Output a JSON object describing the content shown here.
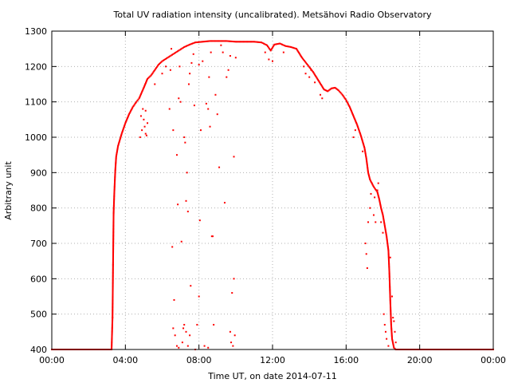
{
  "chart_data": {
    "type": "scatter",
    "title": "Total UV radiation intensity (uncalibrated). Metsähovi Radio Observatory",
    "xlabel": "Time UT, on date 2014-07-11",
    "ylabel": "Arbitrary unit",
    "x_unit": "hours UT",
    "xlim": [
      0,
      24
    ],
    "ylim": [
      400,
      1300
    ],
    "x_ticks": [
      "00:00",
      "04:00",
      "08:00",
      "12:00",
      "16:00",
      "20:00",
      "00:00"
    ],
    "y_ticks": [
      "400",
      "500",
      "600",
      "700",
      "800",
      "900",
      "1000",
      "1100",
      "1200",
      "1300"
    ],
    "grid": true,
    "marker_color": "#ff0000",
    "main_curve": [
      [
        0.0,
        400
      ],
      [
        3.0,
        400
      ],
      [
        3.25,
        400
      ],
      [
        3.3,
        490
      ],
      [
        3.33,
        640
      ],
      [
        3.36,
        785
      ],
      [
        3.4,
        845
      ],
      [
        3.45,
        905
      ],
      [
        3.5,
        945
      ],
      [
        3.6,
        975
      ],
      [
        3.8,
        1010
      ],
      [
        4.0,
        1040
      ],
      [
        4.2,
        1065
      ],
      [
        4.4,
        1085
      ],
      [
        4.6,
        1100
      ],
      [
        4.75,
        1110
      ],
      [
        5.0,
        1140
      ],
      [
        5.2,
        1165
      ],
      [
        5.4,
        1175
      ],
      [
        5.6,
        1190
      ],
      [
        5.8,
        1205
      ],
      [
        6.0,
        1215
      ],
      [
        6.3,
        1225
      ],
      [
        6.6,
        1235
      ],
      [
        6.9,
        1245
      ],
      [
        7.2,
        1255
      ],
      [
        7.5,
        1262
      ],
      [
        7.8,
        1268
      ],
      [
        8.2,
        1270
      ],
      [
        8.6,
        1272
      ],
      [
        9.0,
        1272
      ],
      [
        9.5,
        1272
      ],
      [
        10.0,
        1270
      ],
      [
        10.5,
        1270
      ],
      [
        11.0,
        1270
      ],
      [
        11.4,
        1268
      ],
      [
        11.7,
        1260
      ],
      [
        11.9,
        1245
      ],
      [
        12.1,
        1262
      ],
      [
        12.4,
        1265
      ],
      [
        12.7,
        1258
      ],
      [
        13.0,
        1255
      ],
      [
        13.3,
        1250
      ],
      [
        13.6,
        1225
      ],
      [
        13.9,
        1205
      ],
      [
        14.2,
        1185
      ],
      [
        14.5,
        1160
      ],
      [
        14.8,
        1135
      ],
      [
        15.0,
        1130
      ],
      [
        15.2,
        1138
      ],
      [
        15.4,
        1140
      ],
      [
        15.6,
        1132
      ],
      [
        15.8,
        1120
      ],
      [
        16.0,
        1105
      ],
      [
        16.2,
        1085
      ],
      [
        16.4,
        1060
      ],
      [
        16.6,
        1035
      ],
      [
        16.8,
        1005
      ],
      [
        17.0,
        970
      ],
      [
        17.1,
        940
      ],
      [
        17.2,
        900
      ],
      [
        17.3,
        880
      ],
      [
        17.5,
        860
      ],
      [
        17.7,
        845
      ],
      [
        17.8,
        825
      ],
      [
        17.9,
        800
      ],
      [
        18.0,
        780
      ],
      [
        18.1,
        750
      ],
      [
        18.2,
        720
      ],
      [
        18.3,
        680
      ],
      [
        18.35,
        620
      ],
      [
        18.4,
        540
      ],
      [
        18.45,
        470
      ],
      [
        18.5,
        430
      ],
      [
        18.6,
        405
      ],
      [
        18.7,
        400
      ],
      [
        20.0,
        400
      ],
      [
        24.0,
        400
      ]
    ],
    "scatter_points": [
      [
        3.3,
        490
      ],
      [
        3.33,
        640
      ],
      [
        3.36,
        785
      ],
      [
        4.8,
        1000
      ],
      [
        4.9,
        1020
      ],
      [
        5.0,
        1050
      ],
      [
        5.05,
        1030
      ],
      [
        5.1,
        1075
      ],
      [
        5.15,
        1005
      ],
      [
        5.2,
        1040
      ],
      [
        4.85,
        1060
      ],
      [
        4.95,
        1080
      ],
      [
        5.1,
        1010
      ],
      [
        5.6,
        1150
      ],
      [
        6.0,
        1180
      ],
      [
        6.2,
        1200
      ],
      [
        6.4,
        1080
      ],
      [
        6.45,
        1190
      ],
      [
        6.5,
        1250
      ],
      [
        6.6,
        1020
      ],
      [
        6.55,
        690
      ],
      [
        6.65,
        540
      ],
      [
        6.6,
        460
      ],
      [
        6.7,
        440
      ],
      [
        6.8,
        950
      ],
      [
        6.85,
        810
      ],
      [
        6.9,
        1110
      ],
      [
        6.95,
        1200
      ],
      [
        6.8,
        410
      ],
      [
        6.9,
        405
      ],
      [
        7.0,
        1100
      ],
      [
        7.05,
        705
      ],
      [
        7.1,
        420
      ],
      [
        7.15,
        460
      ],
      [
        7.2,
        1000
      ],
      [
        7.25,
        985
      ],
      [
        7.3,
        820
      ],
      [
        7.35,
        900
      ],
      [
        7.4,
        790
      ],
      [
        7.45,
        1150
      ],
      [
        7.5,
        1180
      ],
      [
        7.55,
        580
      ],
      [
        7.2,
        470
      ],
      [
        7.3,
        450
      ],
      [
        7.4,
        410
      ],
      [
        7.5,
        440
      ],
      [
        7.6,
        1210
      ],
      [
        7.7,
        1235
      ],
      [
        7.75,
        1090
      ],
      [
        7.8,
        400
      ],
      [
        7.9,
        470
      ],
      [
        8.0,
        550
      ],
      [
        8.05,
        765
      ],
      [
        8.1,
        1020
      ],
      [
        8.0,
        1205
      ],
      [
        8.2,
        1215
      ],
      [
        8.4,
        1095
      ],
      [
        8.5,
        1080
      ],
      [
        8.55,
        1170
      ],
      [
        8.6,
        1030
      ],
      [
        8.65,
        1240
      ],
      [
        8.7,
        720
      ],
      [
        8.75,
        720
      ],
      [
        8.8,
        470
      ],
      [
        8.3,
        410
      ],
      [
        8.5,
        405
      ],
      [
        8.9,
        1120
      ],
      [
        9.0,
        1065
      ],
      [
        9.1,
        915
      ],
      [
        9.2,
        1260
      ],
      [
        9.3,
        1240
      ],
      [
        9.4,
        815
      ],
      [
        9.5,
        1170
      ],
      [
        9.6,
        1190
      ],
      [
        9.7,
        1230
      ],
      [
        9.75,
        420
      ],
      [
        9.8,
        560
      ],
      [
        9.9,
        600
      ],
      [
        9.7,
        450
      ],
      [
        9.9,
        945
      ],
      [
        10.0,
        1225
      ],
      [
        9.85,
        410
      ],
      [
        9.95,
        440
      ],
      [
        11.6,
        1240
      ],
      [
        11.8,
        1220
      ],
      [
        12.0,
        1215
      ],
      [
        12.6,
        1240
      ],
      [
        13.7,
        1200
      ],
      [
        13.8,
        1180
      ],
      [
        14.0,
        1170
      ],
      [
        14.1,
        1190
      ],
      [
        14.3,
        1155
      ],
      [
        14.6,
        1120
      ],
      [
        14.7,
        1110
      ],
      [
        16.4,
        1000
      ],
      [
        16.5,
        1020
      ],
      [
        16.9,
        960
      ],
      [
        17.05,
        700
      ],
      [
        17.1,
        670
      ],
      [
        17.15,
        630
      ],
      [
        17.2,
        760
      ],
      [
        17.3,
        800
      ],
      [
        17.35,
        840
      ],
      [
        17.5,
        780
      ],
      [
        17.55,
        830
      ],
      [
        17.6,
        760
      ],
      [
        17.7,
        850
      ],
      [
        17.75,
        870
      ],
      [
        17.9,
        760
      ],
      [
        18.0,
        730
      ],
      [
        18.05,
        500
      ],
      [
        18.1,
        470
      ],
      [
        18.15,
        450
      ],
      [
        18.2,
        430
      ],
      [
        18.3,
        410
      ],
      [
        18.4,
        660
      ],
      [
        18.5,
        550
      ],
      [
        18.55,
        490
      ],
      [
        18.6,
        480
      ],
      [
        18.65,
        450
      ],
      [
        18.7,
        420
      ]
    ]
  }
}
